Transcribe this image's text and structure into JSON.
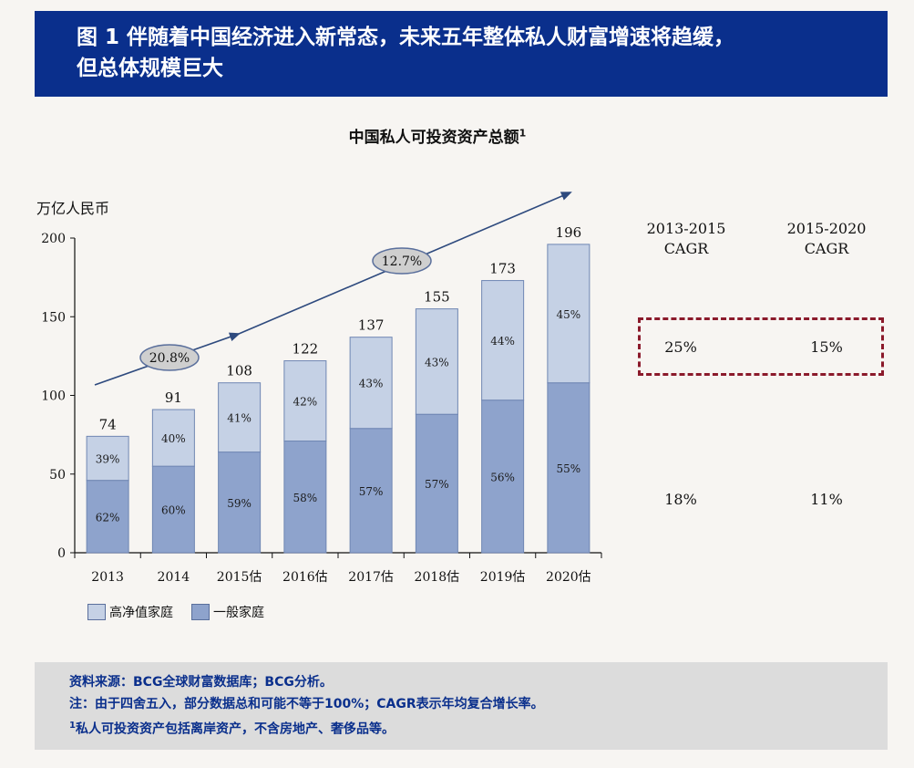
{
  "header": {
    "title_line1": "图 1 伴随着中国经济进入新常态，未来五年整体私人财富增速将趋缓，",
    "title_line2": "但总体规模巨大"
  },
  "chart_data": {
    "type": "bar",
    "stacked": true,
    "title": "中国私人可投资资产总额",
    "title_sup": "1",
    "ylabel": "万亿人民币",
    "ylim": [
      0,
      200
    ],
    "yticks": [
      0,
      50,
      100,
      150,
      200
    ],
    "categories": [
      "2013",
      "2014",
      "2015估",
      "2016估",
      "2017估",
      "2018估",
      "2019估",
      "2020估"
    ],
    "totals": [
      74,
      91,
      108,
      122,
      137,
      155,
      173,
      196
    ],
    "series": [
      {
        "name": "一般家庭",
        "percent_labels": [
          "62%",
          "60%",
          "59%",
          "58%",
          "57%",
          "57%",
          "56%",
          "55%"
        ],
        "values": [
          46,
          55,
          64,
          71,
          79,
          88,
          97,
          108
        ],
        "color": "#8ea3cc"
      },
      {
        "name": "高净值家庭",
        "percent_labels": [
          "39%",
          "40%",
          "41%",
          "42%",
          "43%",
          "43%",
          "44%",
          "45%"
        ],
        "values": [
          28,
          36,
          44,
          51,
          58,
          67,
          76,
          88
        ],
        "color": "#c5d1e5"
      }
    ],
    "annotations": [
      {
        "label": "20.8%",
        "category": "2014"
      },
      {
        "label": "12.7%",
        "category": "2018估"
      }
    ],
    "grid": false
  },
  "cagr": {
    "col1": {
      "line1": "2013-2015",
      "line2": "CAGR"
    },
    "col2": {
      "line1": "2015-2020",
      "line2": "CAGR"
    },
    "row1": {
      "col1": "25%",
      "col2": "15%"
    },
    "row2": {
      "col1": "18%",
      "col2": "11%"
    }
  },
  "legend": {
    "high_net_worth": "高净值家庭",
    "general": "一般家庭"
  },
  "source": {
    "line1": "资料来源：BCG全球财富数据库；BCG分析。",
    "line2": "注：由于四舍五入，部分数据总和可能不等于100%；CAGR表示年均复合增长率。",
    "line3_sup": "1",
    "line3": "私人可投资资产包括离岸资产，不含房地产、奢侈品等。"
  },
  "colors": {
    "header_bg": "#0a2f8c",
    "bar_dark": "#8ea3cc",
    "bar_light": "#c5d1e5",
    "highlight_border": "#8b1a2b",
    "source_bg": "#dcdcdc"
  }
}
